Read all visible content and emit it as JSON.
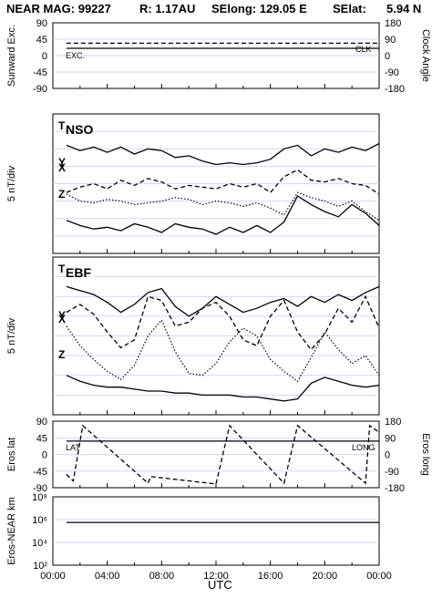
{
  "header": {
    "title": "NEAR MAG: 99227",
    "r": "R: 1.17AU",
    "selong": "SElong: 129.05 E",
    "selat": "SElat:",
    "selat_val": "5.94 N"
  },
  "chart_data": [
    {
      "type": "line",
      "panel": "sunward",
      "ylabel": "Sunward Exc.",
      "ylabel_right": "Clock Angle",
      "yticks": [
        "90",
        "45",
        "0",
        "-45",
        "-90"
      ],
      "yticks_right": [
        "180",
        "90",
        "0",
        "-90",
        "-180"
      ],
      "ylim": [
        -90,
        90
      ],
      "annotations": [
        "EXC.",
        "CLK"
      ],
      "series": [
        {
          "name": "EXC.",
          "style": "solid",
          "values": [
            [
              1,
              20
            ],
            [
              24,
              20
            ]
          ]
        },
        {
          "name": "CLK",
          "style": "dashed",
          "values": [
            [
              1,
              34
            ],
            [
              24,
              34
            ]
          ]
        }
      ]
    },
    {
      "type": "line",
      "panel": "NSO",
      "ylabel": "5 nT/div",
      "annotations": [
        "T",
        "NSO",
        "X",
        "Y",
        "Z"
      ],
      "series": [
        {
          "name": "T",
          "style": "solid",
          "values": [
            [
              1,
              1.8
            ],
            [
              2,
              2.1
            ],
            [
              3,
              1.9
            ],
            [
              4,
              2.2
            ],
            [
              5,
              1.9
            ],
            [
              6,
              2.3
            ],
            [
              7,
              2.0
            ],
            [
              8,
              2.1
            ],
            [
              9,
              2.5
            ],
            [
              10,
              2.4
            ],
            [
              11,
              2.7
            ],
            [
              12,
              2.9
            ],
            [
              13,
              2.8
            ],
            [
              14,
              2.9
            ],
            [
              15,
              2.8
            ],
            [
              16,
              2.6
            ],
            [
              17,
              2.0
            ],
            [
              18,
              1.8
            ],
            [
              19,
              2.4
            ],
            [
              20,
              2.0
            ],
            [
              21,
              2.2
            ],
            [
              22,
              1.9
            ],
            [
              23,
              2.1
            ],
            [
              24,
              1.7
            ]
          ]
        },
        {
          "name": "X",
          "style": "dashed",
          "values": [
            [
              1,
              4.5
            ],
            [
              2,
              4.2
            ],
            [
              3,
              4.0
            ],
            [
              4,
              4.3
            ],
            [
              5,
              3.8
            ],
            [
              6,
              4.1
            ],
            [
              7,
              3.7
            ],
            [
              8,
              3.9
            ],
            [
              9,
              4.3
            ],
            [
              10,
              4.1
            ],
            [
              11,
              4.2
            ],
            [
              12,
              4.3
            ],
            [
              13,
              4.0
            ],
            [
              14,
              4.2
            ],
            [
              15,
              4.0
            ],
            [
              16,
              4.5
            ],
            [
              17,
              3.6
            ],
            [
              18,
              3.2
            ],
            [
              19,
              3.8
            ],
            [
              20,
              3.9
            ],
            [
              21,
              3.7
            ],
            [
              22,
              4.0
            ],
            [
              23,
              4.1
            ],
            [
              24,
              4.6
            ]
          ]
        },
        {
          "name": "Y",
          "style": "dotted",
          "values": [
            [
              1,
              4.6
            ],
            [
              2,
              5.0
            ],
            [
              3,
              5.1
            ],
            [
              4,
              4.9
            ],
            [
              5,
              5.0
            ],
            [
              6,
              5.2
            ],
            [
              7,
              5.1
            ],
            [
              8,
              5.0
            ],
            [
              9,
              4.8
            ],
            [
              10,
              4.9
            ],
            [
              11,
              5.2
            ],
            [
              12,
              5.0
            ],
            [
              13,
              5.1
            ],
            [
              14,
              5.3
            ],
            [
              15,
              5.1
            ],
            [
              16,
              5.4
            ],
            [
              17,
              5.8
            ],
            [
              18,
              4.5
            ],
            [
              19,
              4.8
            ],
            [
              20,
              5.0
            ],
            [
              21,
              5.3
            ],
            [
              22,
              5.0
            ],
            [
              23,
              5.6
            ],
            [
              24,
              6.1
            ]
          ]
        },
        {
          "name": "Z",
          "style": "solid",
          "values": [
            [
              1,
              6.1
            ],
            [
              2,
              6.4
            ],
            [
              3,
              6.6
            ],
            [
              4,
              6.5
            ],
            [
              5,
              6.7
            ],
            [
              6,
              6.3
            ],
            [
              7,
              6.5
            ],
            [
              8,
              6.8
            ],
            [
              9,
              6.3
            ],
            [
              10,
              6.5
            ],
            [
              11,
              6.6
            ],
            [
              12,
              6.9
            ],
            [
              13,
              6.5
            ],
            [
              14,
              6.8
            ],
            [
              15,
              6.4
            ],
            [
              16,
              6.8
            ],
            [
              17,
              6.2
            ],
            [
              18,
              4.7
            ],
            [
              19,
              5.2
            ],
            [
              20,
              5.6
            ],
            [
              21,
              5.9
            ],
            [
              22,
              5.2
            ],
            [
              23,
              5.7
            ],
            [
              24,
              6.4
            ]
          ]
        }
      ]
    },
    {
      "type": "line",
      "panel": "EBF",
      "ylabel": "5 nT/div",
      "annotations": [
        "T",
        "EBF",
        "X",
        "Y",
        "Z"
      ],
      "series": [
        {
          "name": "T",
          "style": "solid",
          "values": [
            [
              1,
              1.5
            ],
            [
              2,
              1.7
            ],
            [
              3,
              1.9
            ],
            [
              4,
              2.3
            ],
            [
              5,
              2.8
            ],
            [
              6,
              2.4
            ],
            [
              7,
              1.8
            ],
            [
              8,
              1.6
            ],
            [
              9,
              2.5
            ],
            [
              10,
              3.0
            ],
            [
              11,
              2.6
            ],
            [
              12,
              2.0
            ],
            [
              13,
              2.4
            ],
            [
              14,
              2.8
            ],
            [
              15,
              2.6
            ],
            [
              16,
              2.3
            ],
            [
              17,
              2.1
            ],
            [
              18,
              2.5
            ],
            [
              19,
              2.0
            ],
            [
              20,
              2.3
            ],
            [
              21,
              1.9
            ],
            [
              22,
              2.2
            ],
            [
              23,
              1.8
            ],
            [
              24,
              1.5
            ]
          ]
        },
        {
          "name": "X",
          "style": "dashed",
          "values": [
            [
              1,
              2.8
            ],
            [
              2,
              2.4
            ],
            [
              3,
              2.9
            ],
            [
              4,
              3.8
            ],
            [
              5,
              4.6
            ],
            [
              6,
              4.2
            ],
            [
              7,
              2.0
            ],
            [
              8,
              2.2
            ],
            [
              9,
              3.5
            ],
            [
              10,
              3.3
            ],
            [
              11,
              2.6
            ],
            [
              12,
              2.3
            ],
            [
              13,
              3.0
            ],
            [
              14,
              4.2
            ],
            [
              15,
              4.5
            ],
            [
              16,
              3.0
            ],
            [
              17,
              2.2
            ],
            [
              18,
              3.8
            ],
            [
              19,
              4.7
            ],
            [
              20,
              3.9
            ],
            [
              21,
              2.6
            ],
            [
              22,
              3.3
            ],
            [
              23,
              2.0
            ],
            [
              24,
              3.6
            ]
          ]
        },
        {
          "name": "Y",
          "style": "dotted",
          "values": [
            [
              1,
              3.5
            ],
            [
              2,
              4.5
            ],
            [
              3,
              5.2
            ],
            [
              4,
              5.8
            ],
            [
              5,
              6.2
            ],
            [
              6,
              5.5
            ],
            [
              7,
              4.0
            ],
            [
              8,
              3.2
            ],
            [
              9,
              4.8
            ],
            [
              10,
              5.9
            ],
            [
              11,
              6.0
            ],
            [
              12,
              5.4
            ],
            [
              13,
              4.3
            ],
            [
              14,
              3.6
            ],
            [
              15,
              4.0
            ],
            [
              16,
              5.2
            ],
            [
              17,
              5.8
            ],
            [
              18,
              6.3
            ],
            [
              19,
              5.1
            ],
            [
              20,
              3.8
            ],
            [
              21,
              4.7
            ],
            [
              22,
              5.4
            ],
            [
              23,
              5.0
            ],
            [
              24,
              6.0
            ]
          ]
        },
        {
          "name": "Z",
          "style": "solid",
          "values": [
            [
              1,
              6.0
            ],
            [
              2,
              6.3
            ],
            [
              3,
              6.5
            ],
            [
              4,
              6.6
            ],
            [
              5,
              6.6
            ],
            [
              6,
              6.7
            ],
            [
              7,
              6.8
            ],
            [
              8,
              6.8
            ],
            [
              9,
              6.9
            ],
            [
              10,
              6.9
            ],
            [
              11,
              7.0
            ],
            [
              12,
              7.0
            ],
            [
              13,
              7.0
            ],
            [
              14,
              7.1
            ],
            [
              15,
              7.1
            ],
            [
              16,
              7.2
            ],
            [
              17,
              7.3
            ],
            [
              18,
              7.2
            ],
            [
              19,
              6.4
            ],
            [
              20,
              6.1
            ],
            [
              21,
              6.3
            ],
            [
              22,
              6.5
            ],
            [
              23,
              6.6
            ],
            [
              24,
              6.5
            ]
          ]
        }
      ]
    },
    {
      "type": "line",
      "panel": "eros-angles",
      "ylabel": "Eros lat",
      "ylabel_right": "Eros long",
      "yticks": [
        "90",
        "45",
        "0",
        "-45",
        "-90"
      ],
      "yticks_right": [
        "180",
        "90",
        "0",
        "-90",
        "-180"
      ],
      "ylim": [
        -90,
        90
      ],
      "annotations": [
        "LAT",
        "LONG"
      ],
      "series": [
        {
          "name": "LAT",
          "style": "solid",
          "values": [
            [
              1,
              36
            ],
            [
              24,
              36
            ]
          ]
        },
        {
          "name": "LONG",
          "style": "dashed",
          "values": [
            [
              1,
              -54
            ],
            [
              1.5,
              -72
            ],
            [
              2.2,
              78
            ],
            [
              7,
              -78
            ],
            [
              7.2,
              -60
            ],
            [
              12,
              -80
            ],
            [
              13,
              78
            ],
            [
              17,
              -78
            ],
            [
              18,
              78
            ],
            [
              23,
              -78
            ],
            [
              23.3,
              78
            ],
            [
              24,
              60
            ]
          ]
        }
      ]
    },
    {
      "type": "line",
      "panel": "range",
      "ylabel": "Eros-NEAR km",
      "yscale": "log",
      "yticks": [
        "10⁸",
        "10⁶",
        "10⁴",
        "10²"
      ],
      "series": [
        {
          "name": "",
          "style": "solid",
          "values": [
            [
              1,
              1000000.0
            ],
            [
              24,
              1000000.0
            ]
          ]
        }
      ]
    }
  ],
  "xaxis": {
    "label": "UTC",
    "ticks": [
      "00:00",
      "04:00",
      "08:00",
      "12:00",
      "16:00",
      "20:00",
      "00:00"
    ]
  }
}
